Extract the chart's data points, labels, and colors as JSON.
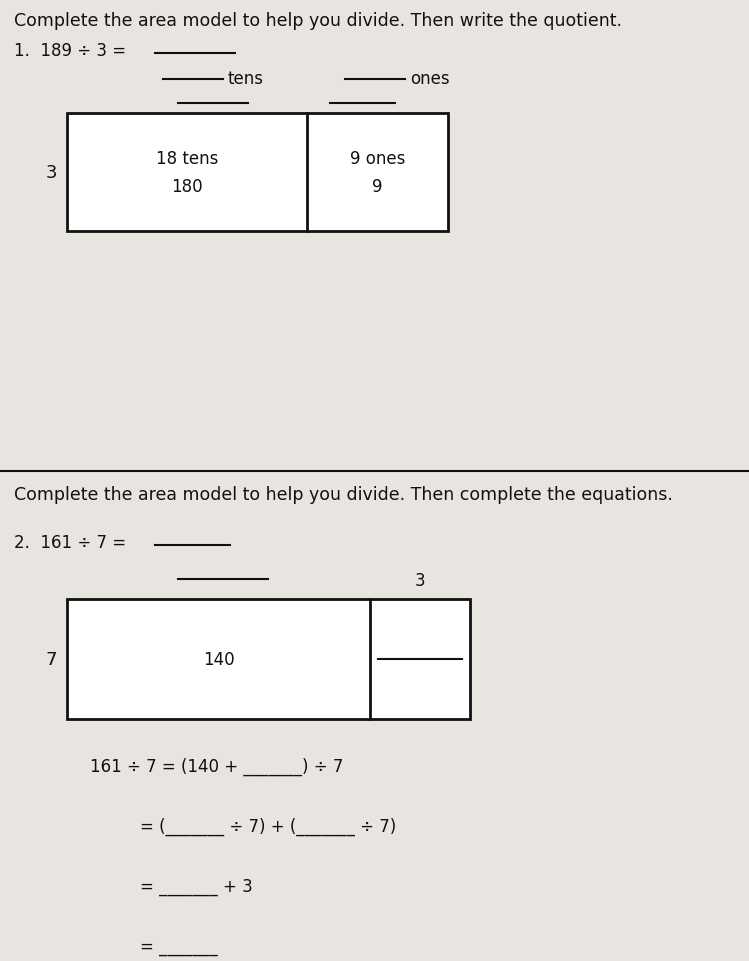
{
  "bg_color": "#e8e4e0",
  "text_color": "#111111",
  "title1": "Complete the area model to help you divide. Then write the quotient.",
  "title2": "Complete the area model to help you divide. Then complete the equations.",
  "q1_label": "1.  189 ÷ 3 = ",
  "q1_tens_label": "tens",
  "q1_ones_label": "ones",
  "q1_divisor": "3",
  "q1_cell1_line1": "18 tens",
  "q1_cell1_line2": "180",
  "q1_cell2_line1": "9 ones",
  "q1_cell2_line2": "9",
  "q2_label": "2.  161 ÷ 7 = ",
  "q2_above_right": "3",
  "q2_divisor": "7",
  "q2_cell1": "140",
  "eq1": "161 ÷ 7 = (140 + _______) ÷ 7",
  "eq2": "= (_______ ÷ 7) + (_______ ÷ 7)",
  "eq3": "= _______ + 3",
  "eq4": "= _______",
  "font_size_title": 12.5,
  "font_size_body": 12,
  "font_size_cell": 12
}
